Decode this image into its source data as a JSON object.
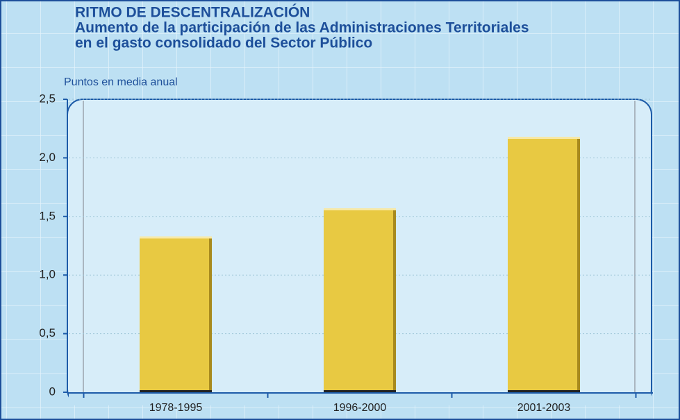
{
  "chart_data": {
    "type": "bar",
    "title": "RITMO DE DESCENTRALIZACIÓN",
    "subtitle": [
      "Aumento de la participación de las Administraciones Territoriales",
      "en el gasto consolidado del Sector Público"
    ],
    "y_axis_label": "Puntos en media anual",
    "categories": [
      "1978-1995",
      "1996-2000",
      "2001-2003"
    ],
    "values": [
      1.33,
      1.57,
      2.18
    ],
    "color": "#e8c942",
    "ylim": [
      0,
      2.5
    ],
    "yticks": [
      0,
      {
        "value": 0.5,
        "label": "0,5"
      },
      {
        "value": 1,
        "label": "1,0"
      },
      {
        "value": 1.5,
        "label": "1,5"
      },
      {
        "value": 2,
        "label": "2,0"
      },
      {
        "value": 2.5,
        "label": "2,5"
      }
    ],
    "grid": true
  }
}
